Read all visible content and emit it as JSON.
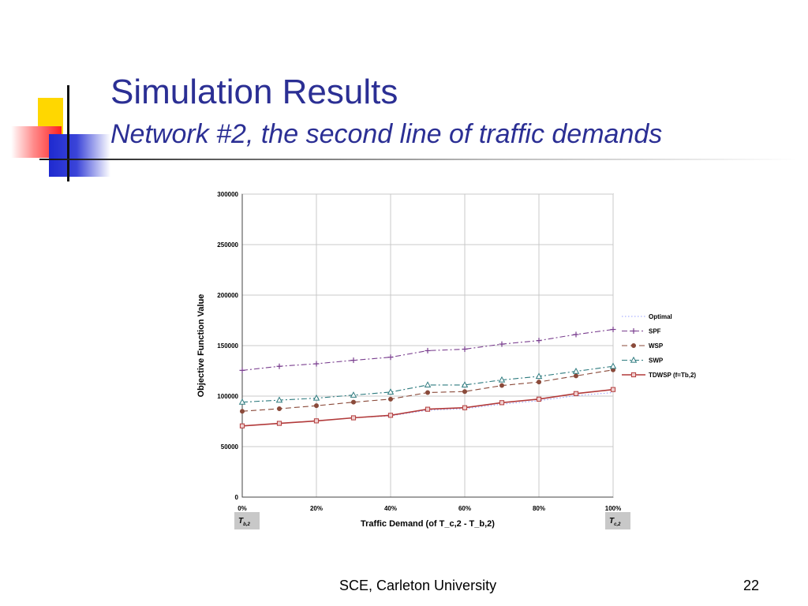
{
  "slide": {
    "title": "Simulation Results",
    "subtitle": "Network #2, the second line of traffic demands",
    "footer": "SCE, Carleton University",
    "page_number": "22"
  },
  "chart_data": {
    "type": "line",
    "title": "",
    "xlabel": "Traffic Demand (of T_c,2 - T_b,2)",
    "ylabel": "Objective Function Value",
    "x": [
      0,
      10,
      20,
      30,
      40,
      50,
      60,
      70,
      80,
      90,
      100
    ],
    "x_tick_values": [
      0,
      20,
      40,
      60,
      80,
      100
    ],
    "x_tick_labels": [
      "0%",
      "20%",
      "40%",
      "60%",
      "80%",
      "100%"
    ],
    "y_tick_values": [
      0,
      50000,
      100000,
      150000,
      200000,
      250000,
      300000
    ],
    "y_tick_labels": [
      "0",
      "50000",
      "100000",
      "150000",
      "200000",
      "250000",
      "300000"
    ],
    "xlim": [
      0,
      100
    ],
    "ylim": [
      0,
      300000
    ],
    "grid": true,
    "legend_position": "right",
    "endpoint_labels": [
      {
        "x": 0,
        "main": "T",
        "sub": "b,2"
      },
      {
        "x": 100,
        "main": "T",
        "sub": "c,2"
      }
    ],
    "series": [
      {
        "name": "Optimal",
        "color": "#9aa0ff",
        "marker": "none",
        "values": [
          70500,
          73000,
          75500,
          78500,
          80500,
          86000,
          87500,
          92000,
          95500,
          100500,
          103500
        ]
      },
      {
        "name": "SPF",
        "color": "#7a3f8f",
        "marker": "plus",
        "values": [
          125500,
          129500,
          132000,
          135500,
          138500,
          145000,
          146500,
          151500,
          155000,
          161000,
          166000
        ]
      },
      {
        "name": "WSP",
        "color": "#8a4a3a",
        "marker": "circle",
        "values": [
          85000,
          87500,
          90500,
          94000,
          97000,
          103500,
          104500,
          110500,
          114000,
          120000,
          126000
        ]
      },
      {
        "name": "SWP",
        "color": "#2e7b7f",
        "marker": "triangle",
        "values": [
          94000,
          96000,
          98000,
          101000,
          104000,
          111000,
          111000,
          116000,
          119500,
          124500,
          129500
        ]
      },
      {
        "name": "TDWSP (f=Tb,2)",
        "color": "#b23a3a",
        "marker": "square",
        "values": [
          70500,
          73000,
          75500,
          78500,
          81000,
          87000,
          88500,
          93500,
          97000,
          102500,
          106500
        ]
      }
    ]
  }
}
